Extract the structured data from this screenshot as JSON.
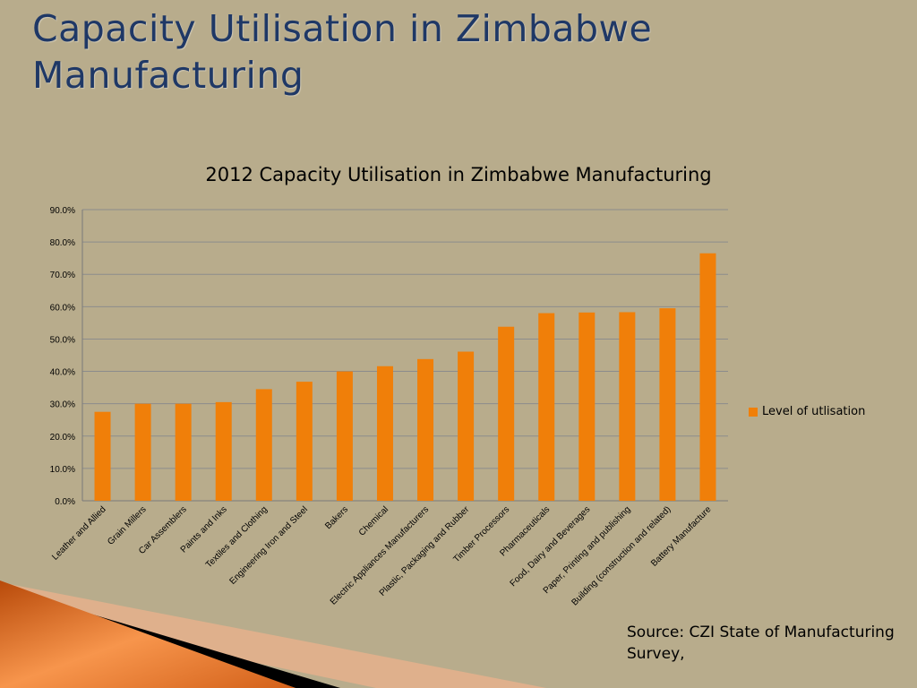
{
  "slide": {
    "title": "Capacity Utilisation in Zimbabwe Manufacturing",
    "source": "Source: CZI State of Manufacturing Survey,"
  },
  "colors": {
    "background": "#b8ac8c",
    "title": "#1f3866",
    "bar": "#f07f09",
    "grid": "#8c8c8c"
  },
  "chart_data": {
    "type": "bar",
    "title": "2012 Capacity Utilisation in Zimbabwe Manufacturing",
    "categories": [
      "Leather and Allied",
      "Grain Millers",
      "Car Assemblers",
      "Paints and Inks",
      "Textiles and Clothing",
      "Engineering Iron and Steel",
      "Bakers",
      "Chemical",
      "Electric Appliances Manufacturers",
      "Plastic, Packaging and Rubber",
      "Timber Processors",
      "Pharmaceuticals",
      "Food, Dairy and Beverages",
      "Paper, Printing and publishing",
      "Building (construction and related)",
      "Battery Manufacture"
    ],
    "series": [
      {
        "name": "Level of utlisation",
        "values": [
          27.5,
          30.0,
          30.0,
          30.5,
          34.5,
          36.8,
          40.0,
          41.6,
          43.8,
          46.1,
          53.8,
          58.0,
          58.2,
          58.3,
          59.5,
          76.5
        ]
      }
    ],
    "ylim": [
      0,
      90
    ],
    "yticks": [
      "0.0%",
      "10.0%",
      "20.0%",
      "30.0%",
      "40.0%",
      "50.0%",
      "60.0%",
      "70.0%",
      "80.0%",
      "90.0%"
    ],
    "grid": true,
    "legend_position": "right"
  }
}
